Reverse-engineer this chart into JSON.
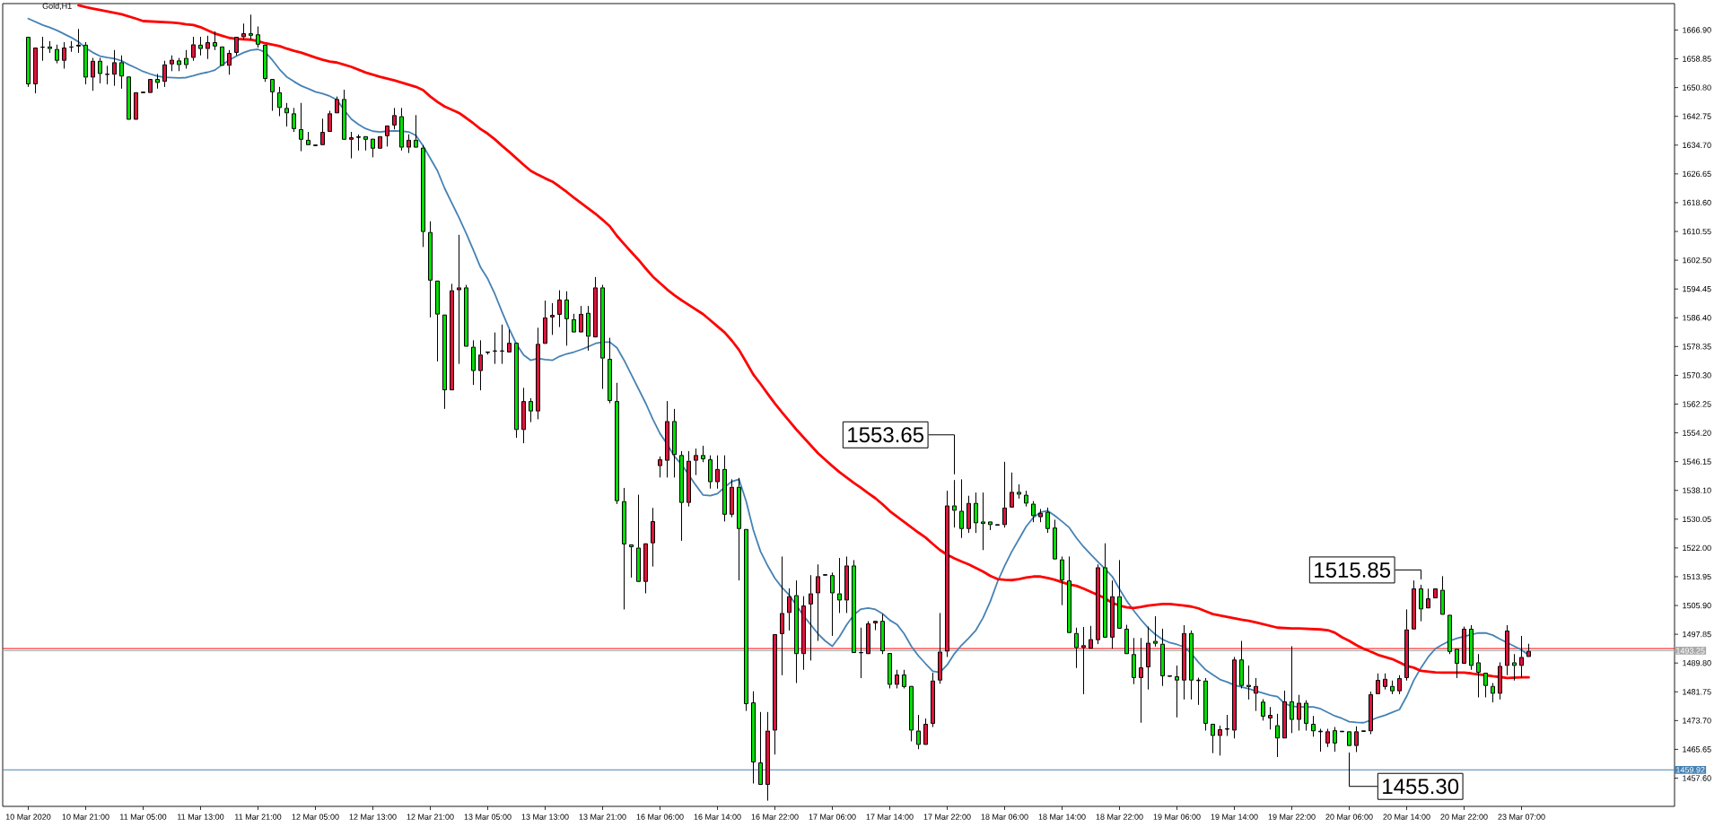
{
  "chart_data": {
    "type": "candlestick",
    "title": "Gold,H1",
    "categories": [
      "10 Mar 2020",
      null,
      null,
      null,
      null,
      null,
      null,
      null,
      "10 Mar 21:00",
      null,
      null,
      null,
      null,
      null,
      null,
      null,
      "11 Mar 05:00",
      null,
      null,
      null,
      null,
      null,
      null,
      null,
      "11 Mar 13:00",
      null,
      null,
      null,
      null,
      null,
      null,
      null,
      "11 Mar 21:00",
      null,
      null,
      null,
      null,
      null,
      null,
      null,
      "12 Mar 05:00",
      null,
      null,
      null,
      null,
      null,
      null,
      null,
      "12 Mar 13:00",
      null,
      null,
      null,
      null,
      null,
      null,
      null,
      "12 Mar 21:00",
      null,
      null,
      null,
      null,
      null,
      null,
      null,
      "13 Mar 05:00",
      null,
      null,
      null,
      null,
      null,
      null,
      null,
      "13 Mar 13:00",
      null,
      null,
      null,
      null,
      null,
      null,
      null,
      "13 Mar 21:00",
      null,
      null,
      null,
      null,
      null,
      null,
      null,
      "16 Mar 06:00",
      null,
      null,
      null,
      null,
      null,
      null,
      null,
      "16 Mar 14:00",
      null,
      null,
      null,
      null,
      null,
      null,
      null,
      "16 Mar 22:00",
      null,
      null,
      null,
      null,
      null,
      null,
      null,
      "17 Mar 06:00",
      null,
      null,
      null,
      null,
      null,
      null,
      null,
      "17 Mar 14:00",
      null,
      null,
      null,
      null,
      null,
      null,
      null,
      "17 Mar 22:00",
      null,
      null,
      null,
      null,
      null,
      null,
      null,
      "18 Mar 06:00",
      null,
      null,
      null,
      null,
      null,
      null,
      null,
      "18 Mar 14:00",
      null,
      null,
      null,
      null,
      null,
      null,
      null,
      "18 Mar 22:00",
      null,
      null,
      null,
      null,
      null,
      null,
      null,
      "19 Mar 06:00",
      null,
      null,
      null,
      null,
      null,
      null,
      null,
      "19 Mar 14:00",
      null,
      null,
      null,
      null,
      null,
      null,
      null,
      "19 Mar 22:00",
      null,
      null,
      null,
      null,
      null,
      null,
      null,
      "20 Mar 06:00",
      null,
      null,
      null,
      null,
      null,
      null,
      null,
      "20 Mar 14:00",
      null,
      null,
      null,
      null,
      null,
      null,
      null,
      "20 Mar 22:00",
      null,
      null,
      null,
      null,
      null,
      null,
      null,
      "23 Mar 07:00",
      null
    ],
    "ohlc": [
      [
        1665.0,
        1665.0,
        1651.0,
        1651.7
      ],
      [
        1651.7,
        1662.0,
        1649.2,
        1662.0
      ],
      [
        1662.0,
        1665.0,
        1658.3,
        1662.2
      ],
      [
        1662.3,
        1663.8,
        1660.5,
        1661.6
      ],
      [
        1661.6,
        1662.8,
        1657.6,
        1658.3
      ],
      [
        1658.3,
        1663.5,
        1656.1,
        1662.0
      ],
      [
        1662.0,
        1663.8,
        1660.8,
        1662.3
      ],
      [
        1662.3,
        1667.2,
        1660.5,
        1662.8
      ],
      [
        1662.8,
        1663.5,
        1651.7,
        1653.6
      ],
      [
        1653.6,
        1659.1,
        1649.9,
        1658.3
      ],
      [
        1658.3,
        1659.1,
        1652.0,
        1654.6
      ],
      [
        1654.6,
        1656.9,
        1651.7,
        1654.4
      ],
      [
        1654.4,
        1661.3,
        1651.3,
        1657.9
      ],
      [
        1657.9,
        1659.8,
        1650.5,
        1653.9
      ],
      [
        1653.9,
        1653.9,
        1641.8,
        1641.8
      ],
      [
        1641.8,
        1649.5,
        1641.8,
        1649.5
      ],
      [
        1649.5,
        1649.5,
        1649.4,
        1649.4
      ],
      [
        1649.3,
        1653.2,
        1649.3,
        1653.2
      ],
      [
        1653.2,
        1654.6,
        1650.5,
        1652.1
      ],
      [
        1652.4,
        1658.3,
        1651.0,
        1657.3
      ],
      [
        1657.3,
        1659.8,
        1655.4,
        1658.6
      ],
      [
        1658.4,
        1659.1,
        1655.4,
        1657.1
      ],
      [
        1659.1,
        1661.3,
        1656.1,
        1657.1
      ],
      [
        1659.1,
        1665.0,
        1658.3,
        1662.9
      ],
      [
        1662.8,
        1665.0,
        1659.8,
        1661.6
      ],
      [
        1661.6,
        1665.3,
        1658.8,
        1663.5
      ],
      [
        1663.5,
        1666.5,
        1661.3,
        1662.3
      ],
      [
        1662.3,
        1662.3,
        1656.9,
        1656.9
      ],
      [
        1656.9,
        1661.3,
        1654.4,
        1660.5
      ],
      [
        1660.5,
        1665.0,
        1659.8,
        1665.0
      ],
      [
        1664.9,
        1668.7,
        1664.2,
        1666.0
      ],
      [
        1666.0,
        1671.2,
        1664.2,
        1665.3
      ],
      [
        1665.7,
        1667.9,
        1662.0,
        1662.8
      ],
      [
        1662.8,
        1662.8,
        1652.4,
        1653.2
      ],
      [
        1653.2,
        1653.2,
        1644.3,
        1649.5
      ],
      [
        1649.5,
        1651.0,
        1642.8,
        1645.1
      ],
      [
        1645.1,
        1646.5,
        1639.9,
        1643.6
      ],
      [
        1643.6,
        1645.1,
        1638.4,
        1639.2
      ],
      [
        1639.2,
        1646.5,
        1633.0,
        1636.2
      ],
      [
        1636.2,
        1638.4,
        1634.7,
        1634.7
      ],
      [
        1634.7,
        1634.7,
        1634.6,
        1634.6
      ],
      [
        1634.7,
        1642.1,
        1634.7,
        1638.4
      ],
      [
        1638.4,
        1644.3,
        1638.4,
        1643.6
      ],
      [
        1643.6,
        1648.3,
        1643.6,
        1647.6
      ],
      [
        1647.6,
        1650.2,
        1636.2,
        1636.2
      ],
      [
        1636.2,
        1638.4,
        1631.0,
        1636.9
      ],
      [
        1636.9,
        1637.7,
        1633.2,
        1637.0
      ],
      [
        1637.2,
        1637.2,
        1633.2,
        1636.2
      ],
      [
        1636.5,
        1636.5,
        1631.3,
        1633.7
      ],
      [
        1633.7,
        1637.2,
        1633.7,
        1637.2
      ],
      [
        1637.2,
        1640.2,
        1634.3,
        1640.2
      ],
      [
        1640.2,
        1645.1,
        1639.1,
        1643.1
      ],
      [
        1642.8,
        1645.1,
        1633.2,
        1634.0
      ],
      [
        1634.0,
        1637.7,
        1632.5,
        1636.2
      ],
      [
        1636.2,
        1643.1,
        1634.0,
        1634.0
      ],
      [
        1634.0,
        1634.7,
        1606.2,
        1610.4
      ],
      [
        1610.4,
        1613.4,
        1586.5,
        1596.8
      ],
      [
        1596.8,
        1596.8,
        1574.2,
        1587.3
      ],
      [
        1587.3,
        1587.3,
        1560.9,
        1566.1
      ],
      [
        1566.1,
        1595.9,
        1566.1,
        1594.1
      ],
      [
        1594.1,
        1609.6,
        1573.5,
        1594.9
      ],
      [
        1594.9,
        1595.6,
        1578.3,
        1578.3
      ],
      [
        1578.3,
        1580.1,
        1567.6,
        1571.5
      ],
      [
        1571.5,
        1580.1,
        1566.1,
        1576.1
      ],
      [
        1576.7,
        1576.8,
        1576.1,
        1576.8
      ],
      [
        1577.2,
        1582.3,
        1573.5,
        1577.0
      ],
      [
        1577.0,
        1584.5,
        1573.5,
        1577.2
      ],
      [
        1576.7,
        1583.1,
        1576.7,
        1579.4
      ],
      [
        1579.4,
        1579.4,
        1552.8,
        1555.0
      ],
      [
        1555.0,
        1566.8,
        1551.3,
        1563.1
      ],
      [
        1563.1,
        1563.9,
        1557.2,
        1560.2
      ],
      [
        1560.2,
        1583.6,
        1558.0,
        1579.1
      ],
      [
        1579.1,
        1591.2,
        1579.1,
        1586.5
      ],
      [
        1586.5,
        1590.5,
        1581.6,
        1587.2
      ],
      [
        1587.2,
        1594.1,
        1583.8,
        1591.5
      ],
      [
        1591.5,
        1593.8,
        1578.6,
        1586.0
      ],
      [
        1586.0,
        1587.5,
        1582.3,
        1582.3
      ],
      [
        1582.3,
        1589.7,
        1582.3,
        1587.5
      ],
      [
        1587.8,
        1589.7,
        1577.2,
        1581.1
      ],
      [
        1580.9,
        1597.8,
        1580.9,
        1594.9
      ],
      [
        1594.9,
        1595.6,
        1566.5,
        1575.0
      ],
      [
        1574.9,
        1580.8,
        1562.5,
        1563.1
      ],
      [
        1563.1,
        1568.2,
        1534.3,
        1535.1
      ],
      [
        1535.1,
        1538.8,
        1504.8,
        1523.0
      ],
      [
        1523.0,
        1523.0,
        1513.7,
        1522.2
      ],
      [
        1522.1,
        1536.9,
        1512.5,
        1512.5
      ],
      [
        1512.5,
        1523.3,
        1509.3,
        1523.3
      ],
      [
        1523.3,
        1533.2,
        1516.8,
        1529.5
      ],
      [
        1544.9,
        1547.6,
        1541.7,
        1546.8
      ],
      [
        1546.4,
        1563.1,
        1541.7,
        1557.5
      ],
      [
        1557.5,
        1560.9,
        1541.7,
        1548.0
      ],
      [
        1548.0,
        1549.1,
        1524.0,
        1534.6
      ],
      [
        1534.6,
        1549.1,
        1533.6,
        1546.4
      ],
      [
        1546.4,
        1549.8,
        1542.4,
        1548.0
      ],
      [
        1548.0,
        1550.6,
        1546.0,
        1546.8
      ],
      [
        1546.8,
        1547.9,
        1538.6,
        1540.4
      ],
      [
        1540.4,
        1547.9,
        1538.6,
        1544.1
      ],
      [
        1544.1,
        1547.9,
        1529.4,
        1531.3
      ],
      [
        1531.3,
        1541.2,
        1530.6,
        1539.1
      ],
      [
        1539.1,
        1541.6,
        1512.9,
        1527.3
      ],
      [
        1527.3,
        1527.3,
        1476.4,
        1478.3
      ],
      [
        1478.8,
        1481.9,
        1456.1,
        1462.0
      ],
      [
        1462.0,
        1476.1,
        1455.7,
        1455.7
      ],
      [
        1455.7,
        1476.1,
        1451.3,
        1470.9
      ],
      [
        1470.9,
        1497.9,
        1464.2,
        1497.9
      ],
      [
        1497.9,
        1519.6,
        1486.4,
        1503.8
      ],
      [
        1503.8,
        1510.7,
        1498.9,
        1508.5
      ],
      [
        1508.8,
        1512.9,
        1484.2,
        1492.3
      ],
      [
        1492.3,
        1508.5,
        1487.9,
        1505.9
      ],
      [
        1506.2,
        1514.4,
        1490.5,
        1509.3
      ],
      [
        1509.3,
        1517.4,
        1496.0,
        1514.1
      ],
      [
        1514.4,
        1514.5,
        1514.4,
        1514.5
      ],
      [
        1514.4,
        1515.1,
        1497.4,
        1509.3
      ],
      [
        1509.3,
        1519.2,
        1503.8,
        1507.3
      ],
      [
        1507.3,
        1519.6,
        1503.8,
        1517.1
      ],
      [
        1517.1,
        1518.6,
        1492.6,
        1492.6
      ],
      [
        1492.6,
        1499.7,
        1485.6,
        1492.8
      ],
      [
        1492.3,
        1501.5,
        1492.3,
        1500.9
      ],
      [
        1500.9,
        1501.6,
        1499.0,
        1501.6
      ],
      [
        1501.6,
        1503.5,
        1492.3,
        1493.1
      ],
      [
        1492.6,
        1492.6,
        1482.7,
        1483.7
      ],
      [
        1483.7,
        1487.9,
        1482.7,
        1486.6
      ],
      [
        1486.6,
        1487.9,
        1482.7,
        1483.1
      ],
      [
        1483.4,
        1483.4,
        1467.9,
        1470.9
      ],
      [
        1470.9,
        1475.3,
        1465.7,
        1466.9
      ],
      [
        1466.9,
        1474.3,
        1466.9,
        1472.8
      ],
      [
        1472.8,
        1487.1,
        1471.9,
        1484.9
      ],
      [
        1484.9,
        1503.8,
        1484.0,
        1493.0
      ],
      [
        1493.0,
        1538.0,
        1491.5,
        1533.9
      ],
      [
        1533.9,
        1541.0,
        1527.7,
        1532.4
      ],
      [
        1532.4,
        1541.2,
        1524.8,
        1527.3
      ],
      [
        1527.3,
        1536.6,
        1526.2,
        1534.6
      ],
      [
        1534.6,
        1537.5,
        1526.2,
        1528.9
      ],
      [
        1529.4,
        1537.5,
        1521.4,
        1528.7
      ],
      [
        1529.4,
        1529.4,
        1527.0,
        1528.4
      ],
      [
        1528.4,
        1528.5,
        1528.4,
        1528.5
      ],
      [
        1528.4,
        1546.1,
        1527.7,
        1533.3
      ],
      [
        1533.3,
        1543.1,
        1533.3,
        1537.7
      ],
      [
        1537.7,
        1539.8,
        1535.8,
        1536.9
      ],
      [
        1536.9,
        1538.0,
        1533.6,
        1534.4
      ],
      [
        1534.4,
        1535.1,
        1529.2,
        1530.9
      ],
      [
        1530.6,
        1532.9,
        1529.2,
        1531.8
      ],
      [
        1532.1,
        1533.3,
        1526.2,
        1527.3
      ],
      [
        1527.7,
        1529.9,
        1518.8,
        1518.8
      ],
      [
        1518.8,
        1519.6,
        1506.0,
        1512.9
      ],
      [
        1512.9,
        1519.6,
        1498.2,
        1498.2
      ],
      [
        1498.2,
        1499.7,
        1488.4,
        1494.0
      ],
      [
        1494.0,
        1499.9,
        1481.1,
        1494.8
      ],
      [
        1493.8,
        1500.2,
        1493.8,
        1496.5
      ],
      [
        1496.2,
        1517.4,
        1495.1,
        1516.6
      ],
      [
        1516.6,
        1523.3,
        1496.9,
        1496.9
      ],
      [
        1496.9,
        1512.9,
        1493.8,
        1508.5
      ],
      [
        1508.5,
        1518.6,
        1499.4,
        1499.4
      ],
      [
        1499.4,
        1500.5,
        1492.3,
        1492.3
      ],
      [
        1492.3,
        1496.8,
        1483.9,
        1485.6
      ],
      [
        1485.6,
        1496.8,
        1473.1,
        1488.6
      ],
      [
        1488.6,
        1500.0,
        1482.4,
        1495.5
      ],
      [
        1496.0,
        1502.9,
        1494.4,
        1495.2
      ],
      [
        1495.2,
        1499.4,
        1483.4,
        1486.1
      ],
      [
        1486.1,
        1486.2,
        1486.1,
        1486.2
      ],
      [
        1486.1,
        1489.1,
        1474.6,
        1484.9
      ],
      [
        1484.9,
        1500.4,
        1479.6,
        1498.2
      ],
      [
        1498.2,
        1498.9,
        1479.6,
        1484.9
      ],
      [
        1484.9,
        1485.7,
        1478.1,
        1485.0
      ],
      [
        1484.9,
        1485.6,
        1470.9,
        1472.8
      ],
      [
        1472.8,
        1472.8,
        1464.6,
        1469.4
      ],
      [
        1469.4,
        1472.3,
        1463.9,
        1471.3
      ],
      [
        1471.3,
        1475.3,
        1469.4,
        1471.4
      ],
      [
        1470.9,
        1491.5,
        1468.7,
        1490.8
      ],
      [
        1490.8,
        1496.0,
        1482.7,
        1483.4
      ],
      [
        1483.7,
        1489.1,
        1479.6,
        1483.1
      ],
      [
        1481.2,
        1485.6,
        1476.4,
        1483.4
      ],
      [
        1479.0,
        1479.7,
        1473.7,
        1474.8
      ],
      [
        1474.3,
        1477.5,
        1471.2,
        1475.3
      ],
      [
        1472.4,
        1475.6,
        1463.5,
        1468.7
      ],
      [
        1468.7,
        1482.1,
        1468.7,
        1479.1
      ],
      [
        1479.1,
        1494.5,
        1470.2,
        1473.9
      ],
      [
        1473.9,
        1480.9,
        1470.9,
        1478.7
      ],
      [
        1478.7,
        1479.4,
        1470.9,
        1472.8
      ],
      [
        1472.8,
        1475.0,
        1469.2,
        1470.7
      ],
      [
        1470.7,
        1471.4,
        1465.0,
        1470.6
      ],
      [
        1467.3,
        1471.4,
        1466.3,
        1470.7
      ],
      [
        1471.0,
        1471.9,
        1465.0,
        1467.3
      ],
      [
        1470.7,
        1470.7,
        1470.6,
        1470.6
      ],
      [
        1470.7,
        1470.7,
        1466.6,
        1466.6
      ],
      [
        1466.6,
        1472.1,
        1464.9,
        1470.7
      ],
      [
        1470.7,
        1470.8,
        1470.7,
        1470.8
      ],
      [
        1470.7,
        1481.8,
        1469.9,
        1481.1
      ],
      [
        1481.1,
        1486.9,
        1481.1,
        1485.1
      ],
      [
        1483.1,
        1486.9,
        1482.4,
        1485.4
      ],
      [
        1483.4,
        1484.9,
        1481.1,
        1481.9
      ],
      [
        1481.9,
        1486.4,
        1481.1,
        1485.6
      ],
      [
        1485.6,
        1504.8,
        1484.9,
        1499.2
      ],
      [
        1499.2,
        1512.9,
        1499.2,
        1510.7
      ],
      [
        1510.7,
        1511.7,
        1501.5,
        1504.8
      ],
      [
        1505.1,
        1510.6,
        1505.1,
        1507.9
      ],
      [
        1507.9,
        1510.7,
        1507.9,
        1510.7
      ],
      [
        1510.3,
        1514.1,
        1503.3,
        1503.3
      ],
      [
        1503.3,
        1503.3,
        1492.3,
        1492.9
      ],
      [
        1493.8,
        1493.8,
        1485.6,
        1489.6
      ],
      [
        1489.6,
        1500.0,
        1489.6,
        1499.4
      ],
      [
        1499.4,
        1500.4,
        1487.9,
        1489.0
      ],
      [
        1490.0,
        1492.3,
        1480.2,
        1487.1
      ],
      [
        1487.1,
        1487.1,
        1480.2,
        1483.4
      ],
      [
        1483.4,
        1484.2,
        1478.8,
        1481.2
      ],
      [
        1481.2,
        1490.0,
        1479.6,
        1489.0
      ],
      [
        1489.0,
        1500.4,
        1486.4,
        1498.9
      ],
      [
        1490.0,
        1492.3,
        1484.9,
        1489.0
      ],
      [
        1489.0,
        1497.4,
        1485.6,
        1491.5
      ],
      [
        1491.5,
        1495.2,
        1491.5,
        1493.2
      ]
    ],
    "colors": [
      "#00e000",
      "#dc143c",
      "#000000",
      "#00e000",
      "#00e000",
      "#dc143c",
      "#000000",
      "#000000",
      "#00e000",
      "#dc143c",
      "#00e000",
      "#000000",
      "#dc143c",
      "#00e000",
      "#00e000",
      "#dc143c",
      "#000000",
      "#dc143c",
      "#00e000",
      "#dc143c",
      "#dc143c",
      "#00e000",
      "#00e000",
      "#dc143c",
      "#00e000",
      "#dc143c",
      "#00e000",
      "#00e000",
      "#dc143c",
      "#dc143c",
      "#dc143c",
      "#00e000",
      "#00e000",
      "#00e000",
      "#00e000",
      "#00e000",
      "#00e000",
      "#00e000",
      "#00e000",
      "#00e000",
      "#000000",
      "#dc143c",
      "#dc143c",
      "#dc143c",
      "#00e000",
      "#dc143c",
      "#000000",
      "#00e000",
      "#00e000",
      "#dc143c",
      "#dc143c",
      "#dc143c",
      "#00e000",
      "#dc143c",
      "#00e000",
      "#00e000",
      "#00e000",
      "#00e000",
      "#00e000",
      "#dc143c",
      "#dc143c",
      "#00e000",
      "#00e000",
      "#dc143c",
      "#000000",
      "#000000",
      "#000000",
      "#dc143c",
      "#00e000",
      "#dc143c",
      "#00e000",
      "#dc143c",
      "#dc143c",
      "#dc143c",
      "#dc143c",
      "#00e000",
      "#00e000",
      "#dc143c",
      "#00e000",
      "#dc143c",
      "#00e000",
      "#00e000",
      "#00e000",
      "#00e000",
      "#00e000",
      "#00e000",
      "#dc143c",
      "#dc143c",
      "#dc143c",
      "#dc143c",
      "#00e000",
      "#00e000",
      "#dc143c",
      "#dc143c",
      "#00e000",
      "#00e000",
      "#dc143c",
      "#00e000",
      "#dc143c",
      "#00e000",
      "#00e000",
      "#00e000",
      "#00e000",
      "#dc143c",
      "#dc143c",
      "#dc143c",
      "#dc143c",
      "#00e000",
      "#dc143c",
      "#dc143c",
      "#dc143c",
      "#000000",
      "#00e000",
      "#00e000",
      "#dc143c",
      "#00e000",
      "#000000",
      "#dc143c",
      "#dc143c",
      "#00e000",
      "#00e000",
      "#dc143c",
      "#00e000",
      "#00e000",
      "#00e000",
      "#dc143c",
      "#dc143c",
      "#dc143c",
      "#dc143c",
      "#00e000",
      "#00e000",
      "#dc143c",
      "#00e000",
      "#00e000",
      "#00e000",
      "#000000",
      "#dc143c",
      "#dc143c",
      "#00e000",
      "#00e000",
      "#00e000",
      "#dc143c",
      "#00e000",
      "#00e000",
      "#00e000",
      "#00e000",
      "#00e000",
      "#dc143c",
      "#dc143c",
      "#dc143c",
      "#00e000",
      "#dc143c",
      "#00e000",
      "#00e000",
      "#00e000",
      "#dc143c",
      "#dc143c",
      "#00e000",
      "#00e000",
      "#000000",
      "#00e000",
      "#dc143c",
      "#00e000",
      "#000000",
      "#00e000",
      "#00e000",
      "#dc143c",
      "#000000",
      "#dc143c",
      "#00e000",
      "#00e000",
      "#dc143c",
      "#00e000",
      "#dc143c",
      "#00e000",
      "#dc143c",
      "#00e000",
      "#dc143c",
      "#00e000",
      "#00e000",
      "#000000",
      "#dc143c",
      "#00e000",
      "#000000",
      "#00e000",
      "#dc143c",
      "#000000",
      "#dc143c",
      "#dc143c",
      "#dc143c",
      "#00e000",
      "#dc143c",
      "#dc143c",
      "#dc143c",
      "#00e000",
      "#dc143c",
      "#dc143c",
      "#00e000",
      "#00e000",
      "#00e000",
      "#dc143c",
      "#00e000",
      "#00e000",
      "#00e000",
      "#00e000",
      "#dc143c",
      "#dc143c",
      "#00e000",
      "#dc143c",
      "#dc143c"
    ],
    "series": [
      {
        "type": "line",
        "color": "#4682b4",
        "values": [
          1670.1,
          1669.2,
          1668.3,
          1667.6,
          1666.8,
          1665.8,
          1664.8,
          1663.6,
          1661.9,
          1660.6,
          1659.6,
          1659.2,
          1658.9,
          1658.3,
          1657.2,
          1656.3,
          1655.3,
          1654.6,
          1654.0,
          1653.7,
          1653.6,
          1653.5,
          1653.6,
          1654.1,
          1654.7,
          1655.1,
          1655.7,
          1657.2,
          1658.5,
          1659.6,
          1660.6,
          1661.3,
          1661.5,
          1660.7,
          1658.5,
          1655.9,
          1653.8,
          1652.5,
          1651.3,
          1650.5,
          1649.6,
          1649.1,
          1648.4,
          1647.4,
          1644.5,
          1642.0,
          1640.5,
          1639.3,
          1638.6,
          1638.4,
          1638.6,
          1638.7,
          1638.6,
          1638.4,
          1637.4,
          1634.5,
          1631.0,
          1627.5,
          1622.6,
          1618.5,
          1614.4,
          1610.0,
          1605.3,
          1600.5,
          1597.3,
          1593.0,
          1588.0,
          1583.3,
          1579.0,
          1576.0,
          1574.5,
          1575.0,
          1574.7,
          1574.5,
          1575.6,
          1576.3,
          1576.8,
          1577.5,
          1578.3,
          1579.2,
          1579.6,
          1579.6,
          1578.0,
          1574.5,
          1570.5,
          1566.5,
          1562.5,
          1558.0,
          1554.0,
          1551.0,
          1547.6,
          1545.4,
          1542.4,
          1539.5,
          1536.8,
          1536.6,
          1537.2,
          1539.0,
          1540.6,
          1541.2,
          1535.0,
          1527.0,
          1521.0,
          1517.0,
          1513.5,
          1510.9,
          1508.8,
          null,
          1503.0,
          1500.5,
          1498.0,
          1496.0,
          1494.5,
          1497.2,
          1500.5,
          1503.3,
          1504.9,
          1505.2,
          1504.8,
          1503.6,
          1501.8,
          1500.6,
          1498.0,
          1494.5,
          1491.8,
          1489.6,
          1487.5,
          1487.2,
          1489.3,
          1492.4,
          1494.8,
          1496.8,
          1499.0,
          1502.5,
          1507.0,
          1512.5,
          1517.0,
          1521.0,
          1524.5,
          1528.0,
          1530.5,
          1532.0,
          1532.4,
          1531.0,
          1529.4,
          1527.7,
          1524.8,
          1522.3,
          1520.2,
          1518.1,
          1516.1,
          1514.0,
          1510.5,
          1507.2,
          1504.4,
          1501.9,
          1499.6,
          1497.8,
          1496.4,
          1495.5,
          1495.0,
          1494.3,
          1492.5,
          1490.0,
          1487.9,
          1486.5,
          1485.2,
          1484.5,
          1483.6,
          1483.1,
          1482.6,
          1482.0,
          1481.4,
          1480.8,
          1480.4,
          1478.5,
          1477.7,
          1477.5,
          1477.5,
          1477.5,
          1477.0,
          1476.0,
          1475.0,
          1474.3,
          1473.4,
          1473.2,
          1473.1,
          1473.8,
          1474.6,
          1475.2,
          1476.0,
          1476.8,
          1480.5,
          1485.0,
          1488.5,
          1491.5,
          1493.8,
          1495.0,
          1496.0,
          1496.7,
          1497.2,
          1497.8,
          1498.2,
          1498.2,
          1497.6,
          1496.5,
          1495.5,
          1494.5,
          1493.5,
          1492.0
        ]
      },
      {
        "type": "line",
        "color": "#ff0000",
        "values": [
          null,
          null,
          null,
          null,
          null,
          null,
          null,
          1673.8,
          1673.3,
          1672.9,
          1672.5,
          1672.1,
          1671.7,
          1671.3,
          1670.7,
          1670.1,
          1669.4,
          1669.3,
          1669.2,
          1669.1,
          1669.0,
          1668.8,
          1668.5,
          1668.3,
          1667.7,
          1666.8,
          1665.9,
          1665.3,
          1664.7,
          1664.4,
          1664.3,
          1664.2,
          1663.8,
          1663.2,
          1662.8,
          1662.4,
          1661.7,
          1661.1,
          1660.6,
          1659.9,
          1659.2,
          1658.6,
          1658.1,
          1657.8,
          1657.2,
          1656.6,
          1655.8,
          1655.0,
          1654.4,
          1653.8,
          1653.3,
          1652.8,
          1652.2,
          1651.6,
          1651.0,
          1650.1,
          1648.3,
          1646.8,
          1645.5,
          1644.6,
          1643.7,
          1642.3,
          1640.8,
          1639.2,
          1637.9,
          1636.3,
          1634.5,
          1632.8,
          1631.0,
          1629.2,
          1627.5,
          1626.4,
          1625.4,
          1624.5,
          1623.1,
          1621.6,
          1620.0,
          1618.5,
          1617.0,
          1615.5,
          1613.8,
          1612.0,
          1609.3,
          1607.0,
          1604.8,
          1602.6,
          1600.2,
          1597.9,
          1596.1,
          1594.3,
          1592.7,
          1591.3,
          1590.0,
          1588.7,
          1587.4,
          1585.7,
          1584.0,
          1582.3,
          1580.0,
          1577.4,
          1574.0,
          1570.5,
          1567.9,
          1565.1,
          1562.4,
          1559.9,
          1557.5,
          1555.1,
          1552.9,
          1550.7,
          1548.5,
          1546.7,
          1544.9,
          1543.2,
          1541.7,
          1540.2,
          1538.8,
          1537.3,
          1535.9,
          1534.2,
          1532.3,
          1530.8,
          1529.3,
          1527.8,
          1526.3,
          1524.9,
          1523.1,
          1521.4,
          1520.1,
          1519.1,
          1518.2,
          1517.4,
          1516.4,
          1515.4,
          1514.2,
          1513.3,
          1513.1,
          1513.0,
          1513.3,
          1513.7,
          1514.0,
          1514.0,
          1513.6,
          1513.1,
          1512.4,
          1511.8,
          1511.4,
          1510.6,
          1509.7,
          1508.8,
          1507.9,
          1506.6,
          1505.9,
          1505.4,
          1505.2,
          1505.5,
          1505.9,
          1506.1,
          1506.3,
          1506.3,
          1506.1,
          1505.9,
          1505.6,
          1505.1,
          1504.3,
          1503.5,
          1503.1,
          1502.7,
          1502.3,
          1501.9,
          1501.6,
          1501.2,
          1500.7,
          1500.2,
          1499.7,
          1499.6,
          1499.5,
          1499.5,
          1499.4,
          1499.3,
          1499.2,
          1499.0,
          1498.3,
          1497.0,
          1496.0,
          1494.8,
          1493.8,
          1493.0,
          1492.1,
          1491.5,
          1490.9,
          1490.0,
          1489.0,
          1488.5,
          1487.6,
          1487.4,
          1487.2,
          1487.1,
          1487.1,
          1487.1,
          1487.1,
          1486.9,
          1486.6,
          1486.4,
          1486.1,
          1485.9,
          1485.6,
          1485.7,
          1485.8,
          1485.8
        ]
      }
    ],
    "ylim": [
      1449.7,
      1674.3
    ],
    "yticks": [
      {
        "value": 1457.6,
        "label": "1457.60"
      },
      {
        "value": 1465.65,
        "label": "1465.65"
      },
      {
        "value": 1473.7,
        "label": "1473.70"
      },
      {
        "value": 1481.75,
        "label": "1481.75"
      },
      {
        "value": 1489.8,
        "label": "1489.80"
      },
      {
        "value": 1497.85,
        "label": "1497.85"
      },
      {
        "value": 1505.9,
        "label": "1505.90"
      },
      {
        "value": 1513.95,
        "label": "1513.95"
      },
      {
        "value": 1522,
        "label": "1522.00"
      },
      {
        "value": 1530.05,
        "label": "1530.05"
      },
      {
        "value": 1538.1,
        "label": "1538.10"
      },
      {
        "value": 1546.15,
        "label": "1546.15"
      },
      {
        "value": 1554.2,
        "label": "1554.20"
      },
      {
        "value": 1562.25,
        "label": "1562.25"
      },
      {
        "value": 1570.3,
        "label": "1570.30"
      },
      {
        "value": 1578.35,
        "label": "1578.35"
      },
      {
        "value": 1586.4,
        "label": "1586.40"
      },
      {
        "value": 1594.45,
        "label": "1594.45"
      },
      {
        "value": 1602.5,
        "label": "1602.50"
      },
      {
        "value": 1610.55,
        "label": "1610.55"
      },
      {
        "value": 1618.6,
        "label": "1618.60"
      },
      {
        "value": 1626.65,
        "label": "1626.65"
      },
      {
        "value": 1634.7,
        "label": "1634.70"
      },
      {
        "value": 1642.75,
        "label": "1642.75"
      },
      {
        "value": 1650.8,
        "label": "1650.80"
      },
      {
        "value": 1658.85,
        "label": "1658.85"
      },
      {
        "value": 1666.9,
        "label": "1666.90"
      }
    ],
    "ref_lines": [
      {
        "axis": "y",
        "value": 1493.85,
        "color": "#ff0000"
      },
      {
        "axis": "y",
        "value": 1493.25,
        "label": "1493.25",
        "color": "#a9a9a9"
      },
      {
        "axis": "y",
        "value": 1459.92,
        "label": "1459.92",
        "color": "#4682b4"
      }
    ],
    "annotations": [
      "1553.65",
      "1515.85",
      "1455.30"
    ]
  }
}
